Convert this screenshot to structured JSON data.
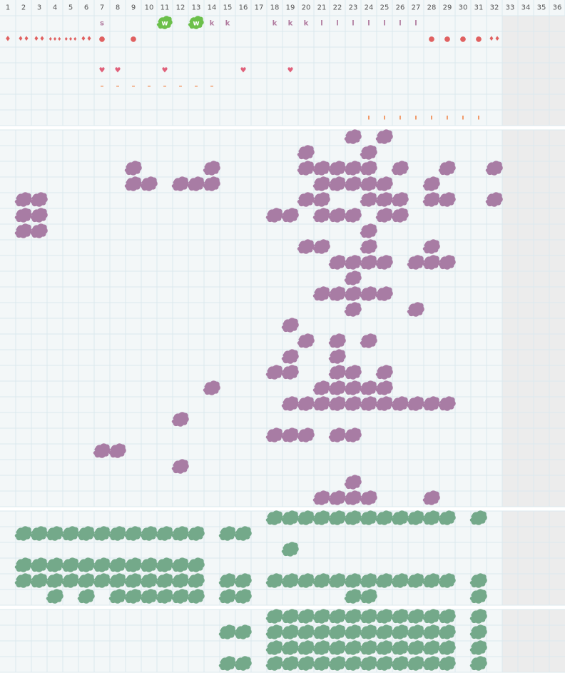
{
  "header": {
    "columns": [
      1,
      2,
      3,
      4,
      5,
      6,
      7,
      8,
      9,
      10,
      11,
      12,
      13,
      14,
      15,
      16,
      17,
      18,
      19,
      20,
      21,
      22,
      23,
      24,
      25,
      26,
      27,
      28,
      29,
      30,
      31,
      32,
      33,
      34,
      35,
      36
    ]
  },
  "sections": [
    {
      "rows": [
        [
          {
            "col": 7,
            "text": "s",
            "color": "#b07a9e"
          },
          {
            "col": 11,
            "text": "w",
            "color": "#ffffff",
            "badge": "#6cc04a"
          },
          {
            "col": 13,
            "text": "w",
            "color": "#ffffff",
            "badge": "#6cc04a"
          },
          {
            "col": 14,
            "text": "k",
            "color": "#b07a9e"
          },
          {
            "col": 15,
            "text": "k",
            "color": "#b07a9e"
          },
          {
            "col": 18,
            "text": "k",
            "color": "#b07a9e"
          },
          {
            "col": 19,
            "text": "k",
            "color": "#b07a9e"
          },
          {
            "col": 20,
            "text": "k",
            "color": "#b07a9e"
          },
          {
            "col": 21,
            "text": "l",
            "color": "#b07a9e"
          },
          {
            "col": 22,
            "text": "l",
            "color": "#b07a9e"
          },
          {
            "col": 23,
            "text": "l",
            "color": "#b07a9e"
          },
          {
            "col": 24,
            "text": "l",
            "color": "#b07a9e"
          },
          {
            "col": 25,
            "text": "l",
            "color": "#b07a9e"
          },
          {
            "col": 26,
            "text": "l",
            "color": "#b07a9e"
          },
          {
            "col": 27,
            "text": "l",
            "color": "#b07a9e"
          }
        ],
        [
          {
            "col": 1,
            "text": "♦",
            "color": "#e06060"
          },
          {
            "col": 2,
            "text": "♦♦",
            "color": "#e06060"
          },
          {
            "col": 3,
            "text": "♦♦",
            "color": "#e06060"
          },
          {
            "col": 4,
            "text": "♦♦♦",
            "color": "#e06060"
          },
          {
            "col": 5,
            "text": "♦♦♦",
            "color": "#e06060"
          },
          {
            "col": 6,
            "text": "♦♦",
            "color": "#e06060"
          },
          {
            "col": 7,
            "text": "●",
            "color": "#e06060"
          },
          {
            "col": 9,
            "text": "●",
            "color": "#e06060"
          },
          {
            "col": 28,
            "text": "●",
            "color": "#e06060"
          },
          {
            "col": 29,
            "text": "●",
            "color": "#e06060"
          },
          {
            "col": 30,
            "text": "●",
            "color": "#e06060"
          },
          {
            "col": 31,
            "text": "●",
            "color": "#e06060"
          },
          {
            "col": 32,
            "text": "♦♦",
            "color": "#e06060"
          }
        ],
        [],
        [
          {
            "col": 7,
            "text": "♥",
            "color": "#e0607a"
          },
          {
            "col": 8,
            "text": "♥",
            "color": "#e0607a"
          },
          {
            "col": 11,
            "text": "♥",
            "color": "#e0607a"
          },
          {
            "col": 16,
            "text": "♥",
            "color": "#e0607a"
          },
          {
            "col": 19,
            "text": "♥",
            "color": "#e0607a"
          }
        ],
        [
          {
            "col": 7,
            "text": "–",
            "color": "#f0905a"
          },
          {
            "col": 8,
            "text": "–",
            "color": "#f0905a"
          },
          {
            "col": 9,
            "text": "–",
            "color": "#f0905a"
          },
          {
            "col": 10,
            "text": "–",
            "color": "#f0905a"
          },
          {
            "col": 11,
            "text": "–",
            "color": "#f0905a"
          },
          {
            "col": 12,
            "text": "–",
            "color": "#f0905a"
          },
          {
            "col": 13,
            "text": "–",
            "color": "#f0905a"
          },
          {
            "col": 14,
            "text": "–",
            "color": "#f0905a"
          }
        ],
        [],
        [
          {
            "col": 24,
            "text": "ı",
            "color": "#f0905a"
          },
          {
            "col": 25,
            "text": "ı",
            "color": "#f0905a"
          },
          {
            "col": 26,
            "text": "ı",
            "color": "#f0905a"
          },
          {
            "col": 27,
            "text": "ı",
            "color": "#f0905a"
          },
          {
            "col": 28,
            "text": "ı",
            "color": "#f0905a"
          },
          {
            "col": 29,
            "text": "ı",
            "color": "#f0905a"
          },
          {
            "col": 30,
            "text": "ı",
            "color": "#f0905a"
          },
          {
            "col": 31,
            "text": "ı",
            "color": "#f0905a"
          }
        ]
      ]
    },
    {
      "color": "#a87ca4",
      "rows": [
        [
          23,
          25
        ],
        [
          20,
          24
        ],
        [
          9,
          14,
          20,
          21,
          22,
          23,
          24,
          26,
          29,
          32
        ],
        [
          9,
          10,
          12,
          13,
          14,
          21,
          22,
          23,
          24,
          25,
          28
        ],
        [
          2,
          3,
          20,
          21,
          24,
          25,
          26,
          28,
          29,
          32
        ],
        [
          2,
          3,
          18,
          19,
          21,
          22,
          23,
          25,
          26
        ],
        [
          2,
          3,
          24
        ],
        [
          20,
          21,
          24,
          28
        ],
        [
          22,
          23,
          24,
          25,
          27,
          28,
          29
        ],
        [
          23
        ],
        [
          21,
          22,
          23,
          24,
          25
        ],
        [
          23,
          27
        ],
        [
          19
        ],
        [
          20,
          22,
          24
        ],
        [
          19,
          22
        ],
        [
          18,
          19,
          22,
          23,
          25
        ],
        [
          14,
          21,
          22,
          23,
          24,
          25
        ],
        [
          19,
          20,
          21,
          22,
          23,
          24,
          25,
          26,
          27,
          28,
          29
        ],
        [
          12
        ],
        [
          18,
          19,
          20,
          22,
          23
        ],
        [
          7,
          8
        ],
        [
          12
        ],
        [
          23
        ],
        [
          21,
          22,
          23,
          24,
          28
        ]
      ]
    },
    {
      "color": "#74a98a",
      "rows": [
        [
          18,
          19,
          20,
          21,
          22,
          23,
          24,
          25,
          26,
          27,
          28,
          29,
          31
        ],
        [
          2,
          3,
          4,
          5,
          6,
          7,
          8,
          9,
          10,
          11,
          12,
          13,
          15,
          16
        ],
        [
          19
        ],
        [
          2,
          3,
          4,
          5,
          6,
          7,
          8,
          9,
          10,
          11,
          12,
          13
        ],
        [
          2,
          3,
          4,
          5,
          6,
          7,
          8,
          9,
          10,
          11,
          12,
          13,
          15,
          16,
          18,
          19,
          20,
          21,
          22,
          23,
          24,
          25,
          26,
          27,
          28,
          29,
          31
        ],
        [
          4,
          6,
          8,
          9,
          10,
          11,
          12,
          13,
          15,
          16,
          23,
          24,
          31
        ]
      ]
    },
    {
      "color": "#74a98a",
      "rows": [
        [
          18,
          19,
          20,
          21,
          22,
          23,
          24,
          25,
          26,
          27,
          28,
          29,
          31
        ],
        [
          15,
          16,
          18,
          19,
          20,
          21,
          22,
          23,
          24,
          25,
          26,
          27,
          28,
          29,
          31
        ],
        [
          18,
          19,
          20,
          21,
          22,
          23,
          24,
          25,
          26,
          27,
          28,
          29,
          31
        ],
        [
          15,
          16,
          18,
          19,
          20,
          21,
          22,
          23,
          24,
          25,
          26,
          27,
          28,
          29,
          31
        ]
      ]
    }
  ]
}
